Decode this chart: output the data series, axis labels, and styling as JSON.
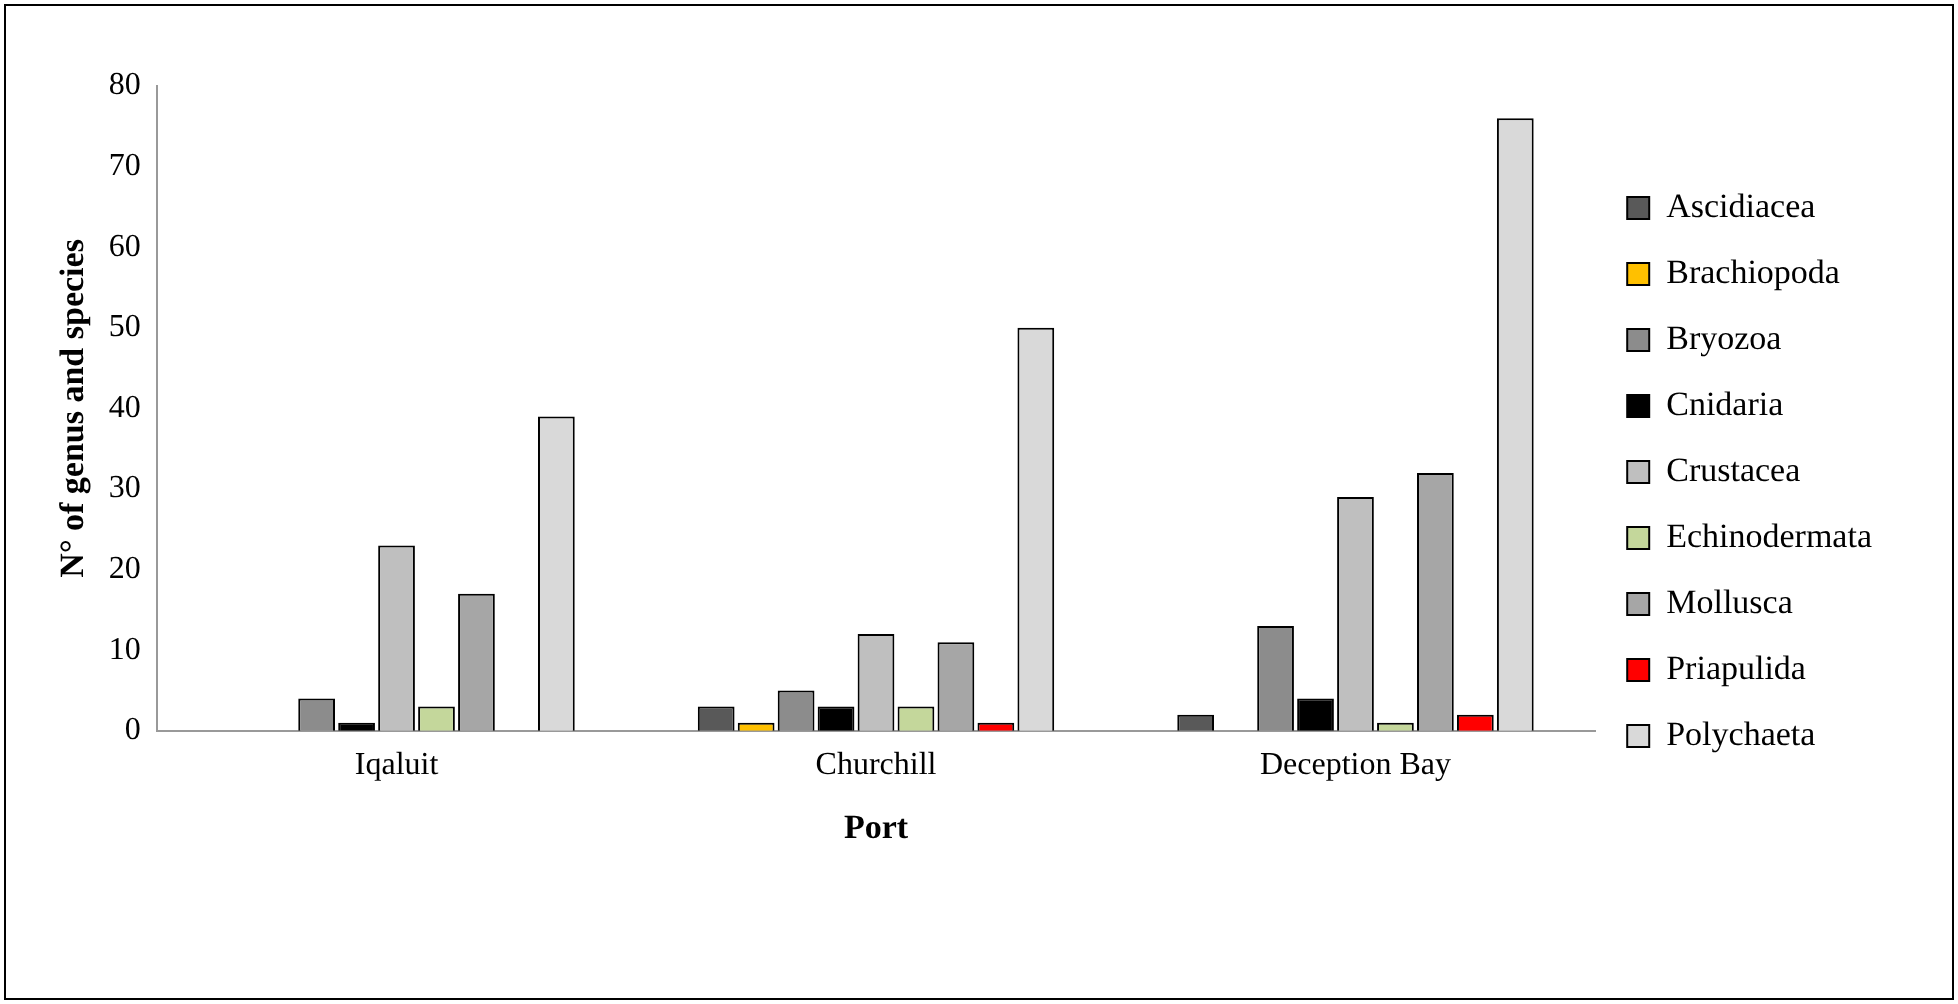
{
  "chart_data": {
    "type": "bar",
    "xlabel": "Port",
    "ylabel": "N° of genus and species",
    "categories": [
      "Iqaluit",
      "Churchill",
      "Deception Bay"
    ],
    "series": [
      {
        "name": "Ascidiacea",
        "color": "#595959",
        "values": [
          0,
          3,
          2
        ]
      },
      {
        "name": "Brachiopoda",
        "color": "#ffc000",
        "values": [
          0,
          1,
          0
        ]
      },
      {
        "name": "Bryozoa",
        "color": "#8c8c8c",
        "values": [
          4,
          5,
          13
        ]
      },
      {
        "name": "Cnidaria",
        "color": "#000000",
        "values": [
          1,
          3,
          4
        ]
      },
      {
        "name": "Crustacea",
        "color": "#bfbfbf",
        "values": [
          23,
          12,
          29
        ]
      },
      {
        "name": "Echinodermata",
        "color": "#c4d79b",
        "values": [
          3,
          3,
          1
        ]
      },
      {
        "name": "Mollusca",
        "color": "#a6a6a6",
        "values": [
          17,
          11,
          32
        ]
      },
      {
        "name": "Priapulida",
        "color": "#ff0000",
        "values": [
          0,
          1,
          2
        ]
      },
      {
        "name": "Polychaeta",
        "color": "#d9d9d9",
        "values": [
          39,
          50,
          76
        ]
      }
    ],
    "ylim": [
      0,
      80
    ],
    "yticks": [
      0,
      10,
      20,
      30,
      40,
      50,
      60,
      70,
      80
    ],
    "grid": false,
    "legend": "right"
  }
}
